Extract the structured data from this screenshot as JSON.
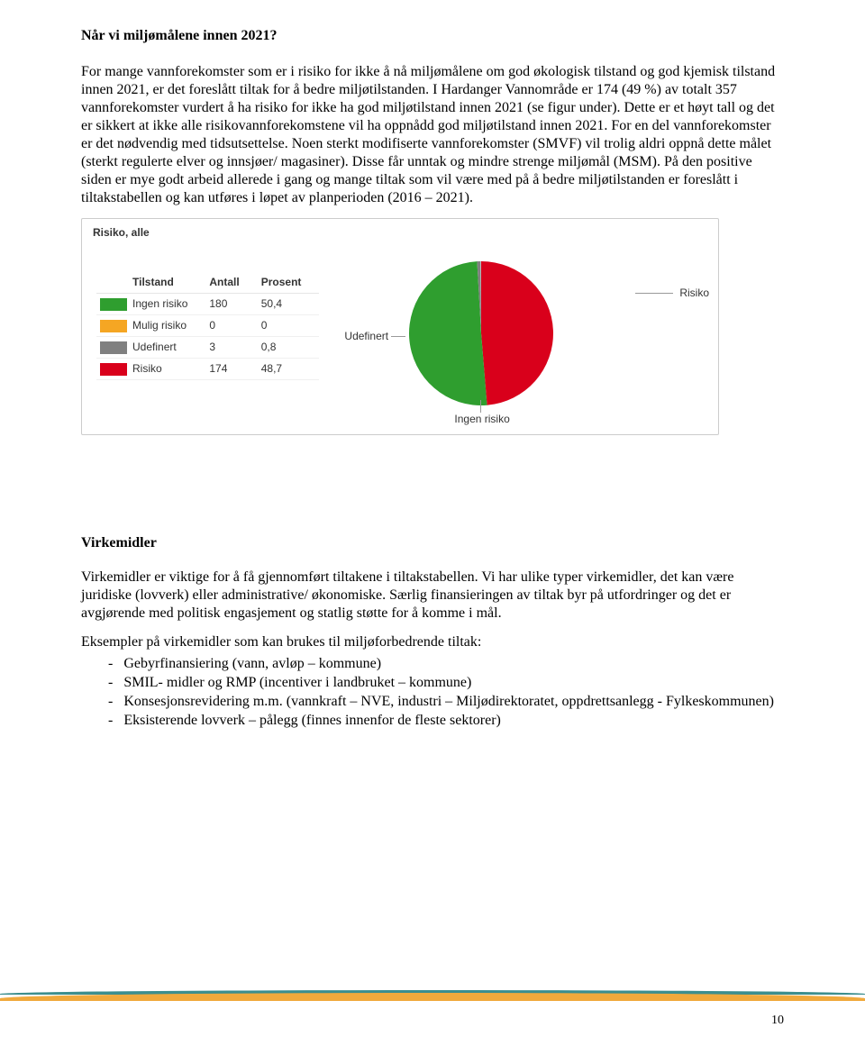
{
  "heading1": "Når vi miljømålene innen 2021?",
  "para1": "For mange vannforekomster som er i risiko for ikke å nå miljømålene om god økologisk tilstand og god kjemisk tilstand innen 2021, er det foreslått tiltak for å bedre miljøtilstanden. I Hardanger Vannområde er 174 (49 %) av totalt 357 vannforekomster vurdert å ha risiko for ikke ha god miljøtilstand innen 2021 (se figur under). Dette er et høyt tall og det er sikkert at ikke alle risikovannforekomstene vil ha oppnådd god miljøtilstand innen 2021. For en del vannforekomster er det nødvendig med tidsutsettelse. Noen sterkt modifiserte vannforekomster (SMVF) vil trolig aldri oppnå dette målet (sterkt regulerte elver og innsjøer/ magasiner). Disse får unntak og mindre strenge miljømål (MSM). På den positive siden er mye godt arbeid allerede i gang og mange tiltak som vil være med på å bedre miljøtilstanden er foreslått i tiltakstabellen og kan utføres i løpet av planperioden (2016 – 2021).",
  "figure": {
    "title": "Risiko, alle",
    "type": "pie",
    "headers": {
      "tilstand": "Tilstand",
      "antall": "Antall",
      "prosent": "Prosent"
    },
    "rows": [
      {
        "label": "Ingen risiko",
        "count": "180",
        "percent": "50,4",
        "value": 50.4,
        "color": "#2f9e2f"
      },
      {
        "label": "Mulig risiko",
        "count": "0",
        "percent": "0",
        "value": 0,
        "color": "#f5a623"
      },
      {
        "label": "Udefinert",
        "count": "3",
        "percent": "0,8",
        "value": 0.8,
        "color": "#808080"
      },
      {
        "label": "Risiko",
        "count": "174",
        "percent": "48,7",
        "value": 48.7,
        "color": "#d9001b"
      }
    ],
    "pie_labels": {
      "risiko": "Risiko",
      "udefinert": "Udefinert",
      "ingen": "Ingen risiko"
    },
    "pie_radius": 80,
    "border_color": "#cccccc",
    "background_color": "#ffffff",
    "font_family": "Arial",
    "font_size": 12
  },
  "heading2": "Virkemidler",
  "para2": "Virkemidler er viktige for å få gjennomført tiltakene i tiltakstabellen. Vi har ulike typer virkemidler, det kan være juridiske (lovverk) eller administrative/ økonomiske. Særlig finansieringen av tiltak byr på utfordringer og det er avgjørende med politisk engasjement og statlig støtte for å komme i mål.",
  "para3_intro": "Eksempler på virkemidler som kan brukes til miljøforbedrende tiltak:",
  "bullets": [
    "Gebyrfinansiering (vann, avløp – kommune)",
    "SMIL- midler og RMP (incentiver i landbruket – kommune)",
    "Konsesjonsrevidering m.m. (vannkraft – NVE, industri – Miljødirektoratet, oppdrettsanlegg - Fylkeskommunen)",
    "Eksisterende lovverk – pålegg (finnes innenfor de fleste sektorer)"
  ],
  "page_number": "10"
}
